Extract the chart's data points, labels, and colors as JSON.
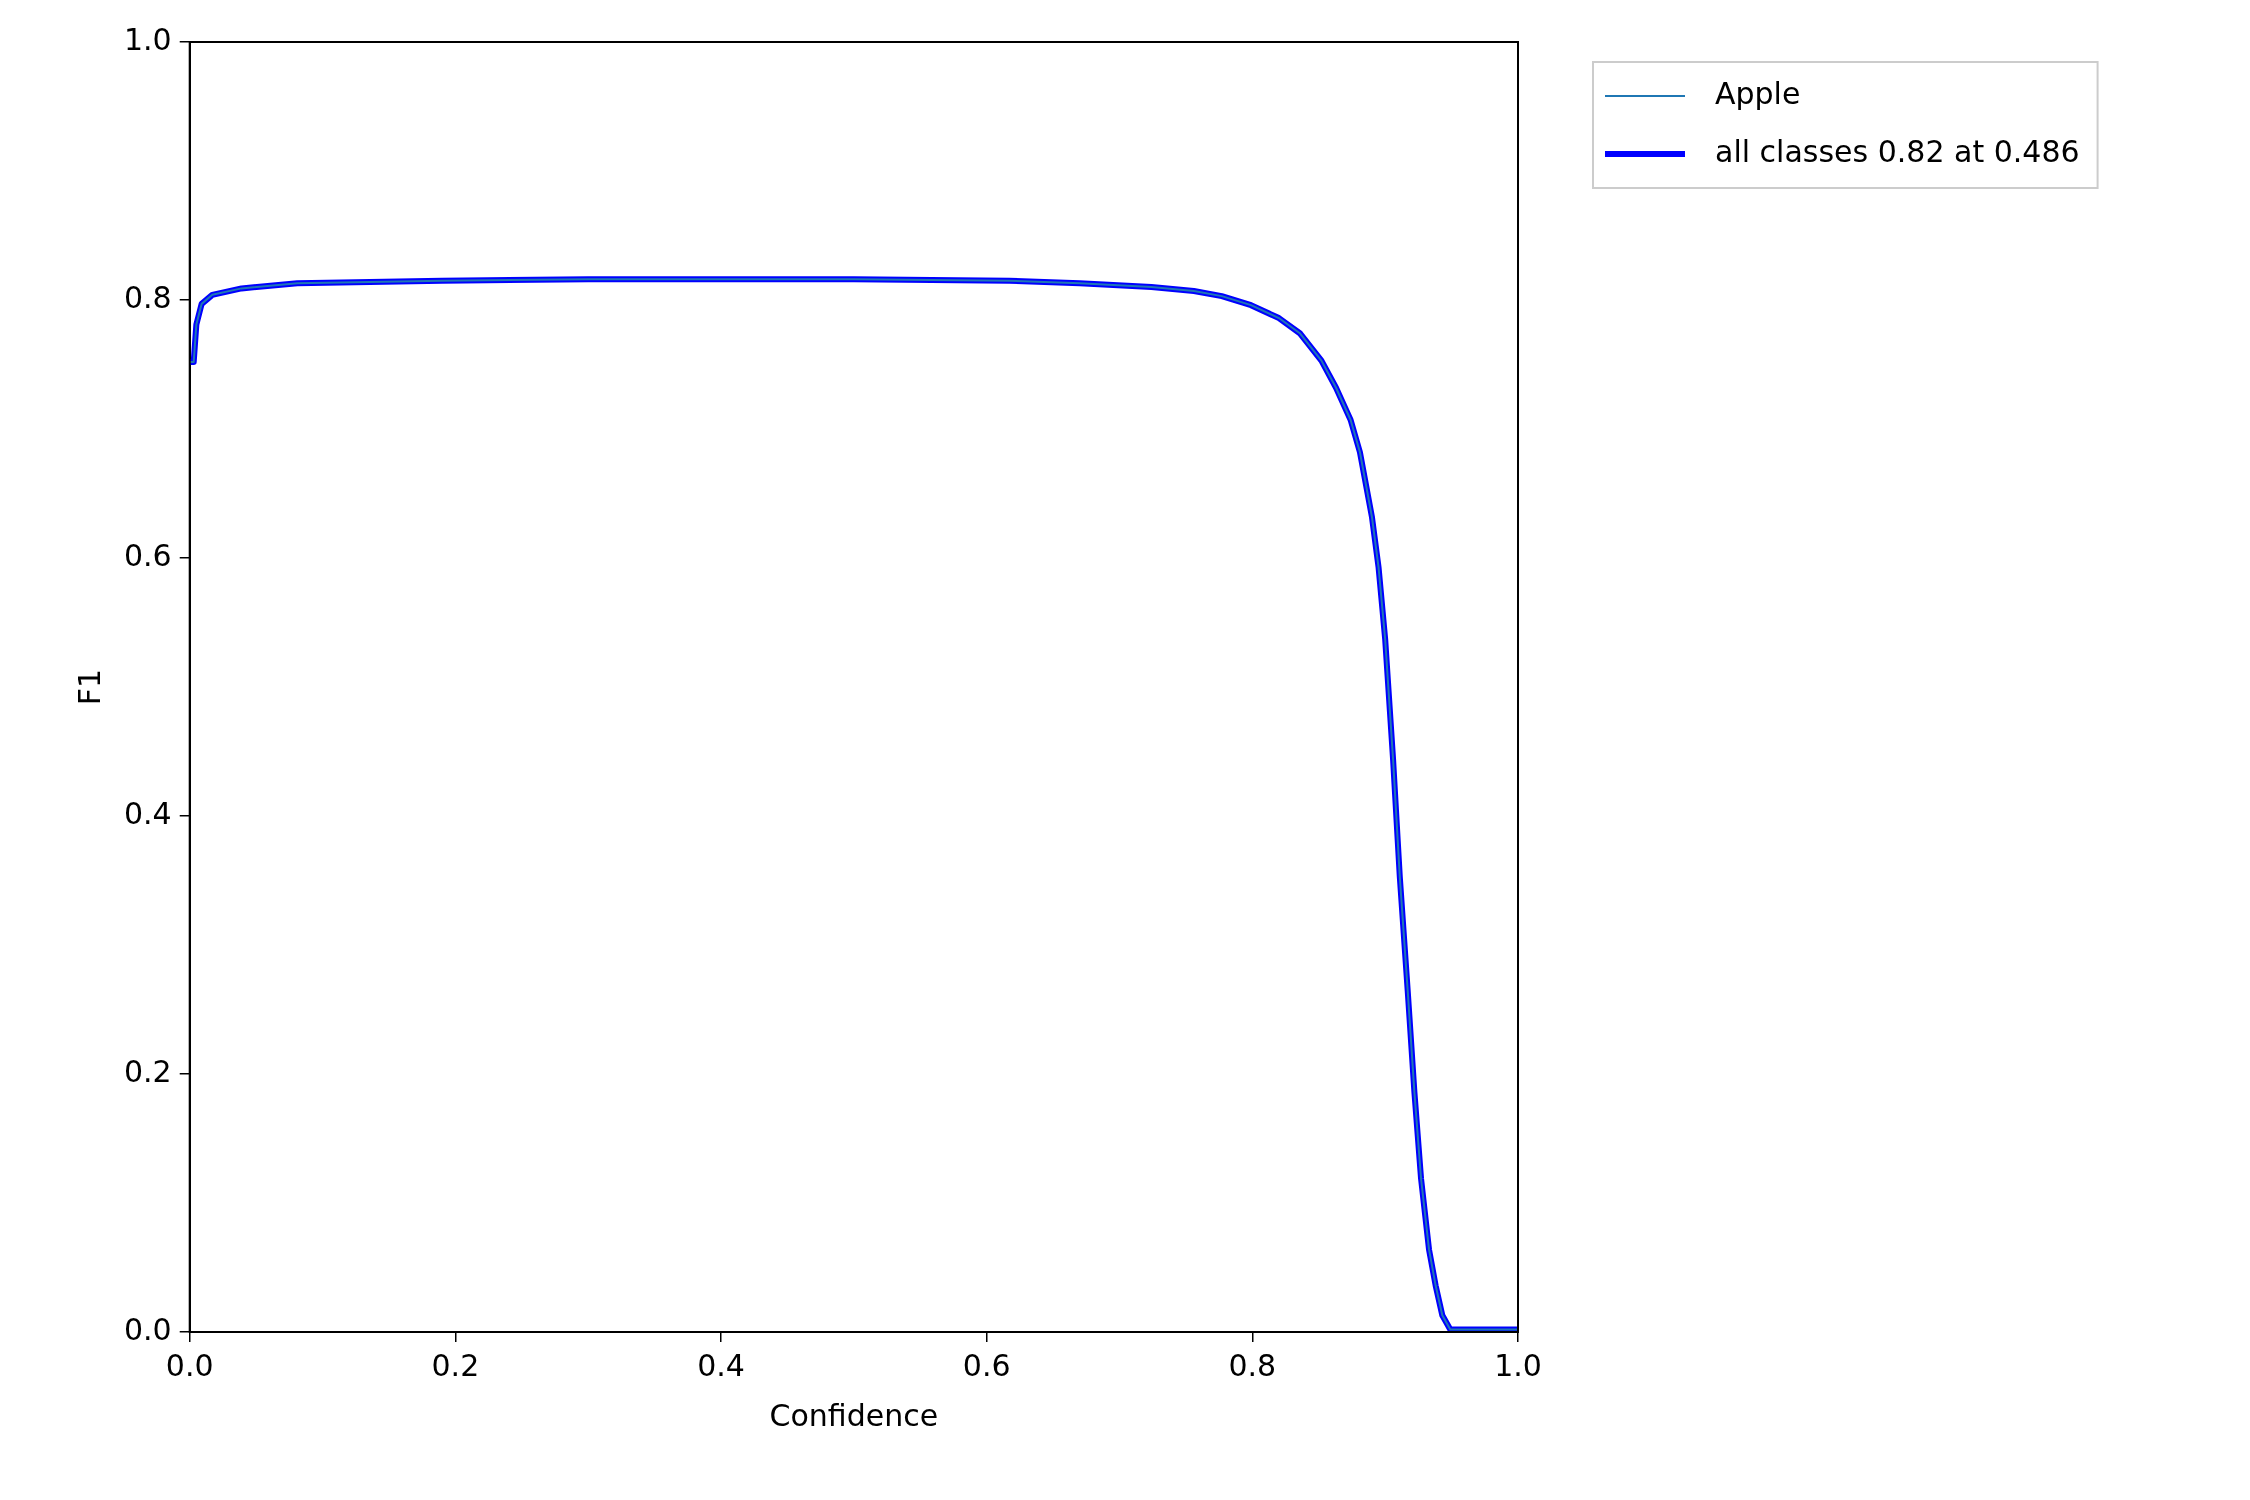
{
  "chart_data": {
    "type": "line",
    "xlabel": "Confidence",
    "ylabel": "F1",
    "xlim": [
      0,
      1
    ],
    "ylim": [
      0,
      1
    ],
    "xticks": [
      {
        "value": 0,
        "label": "0.0"
      },
      0.2,
      0.4,
      0.6,
      0.8,
      {
        "value": 1,
        "label": "1.0"
      }
    ],
    "yticks": [
      {
        "value": 0,
        "label": "0.0"
      },
      0.2,
      0.4,
      0.6,
      0.8,
      {
        "value": 1,
        "label": "1.0"
      }
    ],
    "grid": false,
    "legend": "top right",
    "marker": "none",
    "line_style": "solid",
    "x": [
      0,
      0.003,
      0.005,
      0.009,
      0.017,
      0.039,
      0.081,
      0.19,
      0.3,
      0.4,
      0.5,
      0.617,
      0.67,
      0.724,
      0.756,
      0.777,
      0.799,
      0.82,
      0.836,
      0.852,
      0.863,
      0.874,
      0.881,
      0.89,
      0.895,
      0.9,
      0.906,
      0.911,
      0.917,
      0.922,
      0.927,
      0.933,
      0.938,
      0.943,
      0.949,
      0.96,
      1
    ],
    "series": [
      {
        "name": "Apple",
        "color": "#1f77b4",
        "values": [
          0.752,
          0.752,
          0.781,
          0.797,
          0.804,
          0.809,
          0.813,
          0.815,
          0.816,
          0.816,
          0.816,
          0.815,
          0.813,
          0.81,
          0.807,
          0.803,
          0.796,
          0.786,
          0.774,
          0.753,
          0.732,
          0.707,
          0.682,
          0.632,
          0.593,
          0.537,
          0.443,
          0.353,
          0.264,
          0.186,
          0.119,
          0.064,
          0.036,
          0.013,
          0.002,
          0.002,
          0.002
        ]
      },
      {
        "name": "all classes 0.82 at 0.486",
        "color": "#0000ff",
        "values": [
          0.752,
          0.752,
          0.781,
          0.797,
          0.804,
          0.809,
          0.813,
          0.815,
          0.816,
          0.816,
          0.816,
          0.815,
          0.813,
          0.81,
          0.807,
          0.803,
          0.796,
          0.786,
          0.774,
          0.753,
          0.732,
          0.707,
          0.682,
          0.632,
          0.593,
          0.537,
          0.443,
          0.353,
          0.264,
          0.186,
          0.119,
          0.064,
          0.036,
          0.013,
          0.002,
          0.002,
          0.002
        ]
      }
    ]
  }
}
